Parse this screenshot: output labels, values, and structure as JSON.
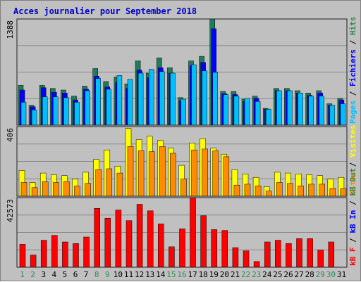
{
  "title": "Acces journalier pour September 2018",
  "colors": {
    "background": "#c0c0c0",
    "title": "#0000cc",
    "weekday": "#000000",
    "weekend": "#2e8b57",
    "gridline": "#8a8a8a",
    "panel_border": "#202020",
    "hits": "#1e7d5b",
    "files": "#0000ff",
    "pages": "#00bfff",
    "visits": "#ffff00",
    "sites": "#ff8c00",
    "kbf": "#ff0000"
  },
  "chart_data": [
    {
      "type": "bar",
      "panel": "top",
      "ytick": "1388",
      "ymax": 1388,
      "side_labels": [
        {
          "text": "Pages",
          "color": "#00bfff"
        },
        {
          "text": " / ",
          "color": "#000000"
        },
        {
          "text": "Fichiers",
          "color": "#0000ff"
        },
        {
          "text": " / ",
          "color": "#000000"
        },
        {
          "text": "Hits",
          "color": "#2e8b57"
        }
      ],
      "series": [
        {
          "name": "Hits",
          "color": "#1e7d5b",
          "values": [
            520,
            260,
            520,
            480,
            460,
            380,
            510,
            740,
            570,
            630,
            540,
            840,
            680,
            880,
            750,
            360,
            840,
            900,
            1388,
            440,
            440,
            340,
            380,
            220,
            480,
            480,
            450,
            420,
            450,
            280,
            350
          ]
        },
        {
          "name": "Fichiers",
          "color": "#0000ff",
          "values": [
            460,
            240,
            490,
            430,
            420,
            330,
            470,
            640,
            500,
            560,
            480,
            720,
            620,
            750,
            680,
            320,
            780,
            820,
            1260,
            410,
            400,
            310,
            350,
            210,
            450,
            450,
            420,
            390,
            420,
            260,
            330
          ]
        },
        {
          "name": "Pages",
          "color": "#00bfff",
          "values": [
            300,
            200,
            370,
            370,
            360,
            300,
            450,
            610,
            470,
            650,
            600,
            680,
            730,
            700,
            680,
            340,
            790,
            710,
            690,
            400,
            380,
            350,
            310,
            210,
            450,
            450,
            420,
            380,
            380,
            260,
            280
          ]
        }
      ]
    },
    {
      "type": "bar",
      "panel": "middle",
      "ytick": "406",
      "ymax": 406,
      "side_labels": [
        {
          "text": "Sites",
          "color": "#ff8c00"
        },
        {
          "text": " / ",
          "color": "#000000"
        },
        {
          "text": "Visites",
          "color": "#ffff00"
        }
      ],
      "series": [
        {
          "name": "Visites",
          "color": "#ffff00",
          "values": [
            150,
            80,
            135,
            125,
            120,
            100,
            140,
            215,
            270,
            175,
            395,
            330,
            350,
            325,
            280,
            180,
            310,
            335,
            280,
            245,
            155,
            130,
            110,
            55,
            140,
            135,
            130,
            125,
            120,
            100,
            110
          ]
        },
        {
          "name": "Sites",
          "color": "#ff8c00",
          "values": [
            80,
            50,
            85,
            80,
            85,
            60,
            75,
            155,
            160,
            135,
            290,
            265,
            260,
            290,
            250,
            100,
            270,
            275,
            265,
            230,
            65,
            70,
            60,
            30,
            80,
            75,
            60,
            70,
            70,
            45,
            45
          ]
        }
      ]
    },
    {
      "type": "bar",
      "panel": "bottom",
      "ytick": "42573",
      "ymax": 42573,
      "side_labels": [
        {
          "text": "kB F",
          "color": "#ff0000"
        },
        {
          "text": " / ",
          "color": "#000000"
        },
        {
          "text": "kB In",
          "color": "#0000ff"
        },
        {
          "text": " / ",
          "color": "#000000"
        },
        {
          "text": "kB Out",
          "color": "#2e8b57"
        }
      ],
      "series": [
        {
          "name": "kB F",
          "color": "#ff0000",
          "values": [
            14000,
            7500,
            16500,
            19500,
            15500,
            14500,
            18500,
            36000,
            30000,
            35000,
            28500,
            38500,
            34500,
            26500,
            12500,
            23500,
            42573,
            31500,
            23000,
            22500,
            12000,
            10000,
            3500,
            15500,
            16500,
            14500,
            17500,
            17500,
            10500,
            15500,
            0
          ]
        }
      ]
    }
  ],
  "days": [
    "1",
    "2",
    "3",
    "4",
    "5",
    "6",
    "7",
    "8",
    "9",
    "10",
    "11",
    "12",
    "13",
    "14",
    "15",
    "16",
    "17",
    "18",
    "19",
    "20",
    "21",
    "22",
    "23",
    "24",
    "25",
    "26",
    "27",
    "28",
    "29",
    "30",
    "31"
  ],
  "weekend_days": [
    "1",
    "2",
    "8",
    "9",
    "15",
    "16",
    "22",
    "23",
    "29",
    "30"
  ]
}
